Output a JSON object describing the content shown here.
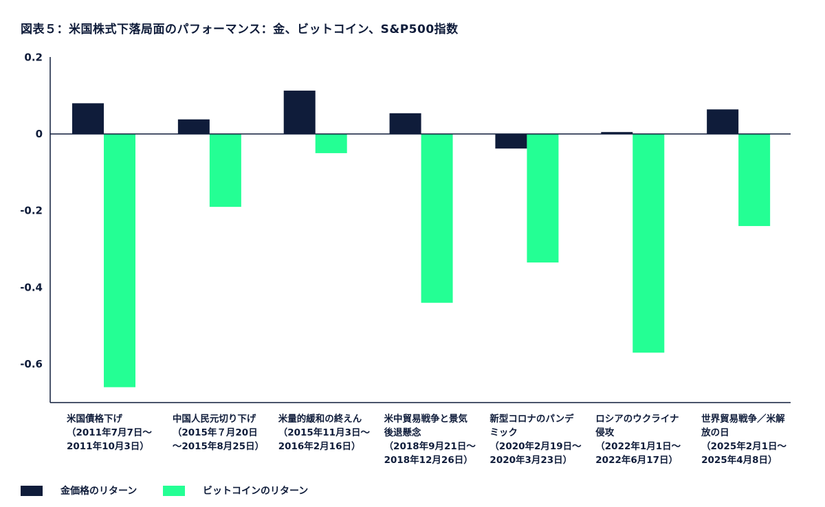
{
  "chart_data": {
    "type": "bar",
    "title": "図表５：米国株式下落局面のパフォーマンス：金、ビットコイン、S&P500指数",
    "xlabel": "",
    "ylabel": "",
    "ylim": [
      -0.7,
      0.2
    ],
    "yticks": [
      0.2,
      0,
      -0.2,
      -0.4,
      -0.6
    ],
    "ytick_labels": [
      "0.2",
      "0",
      "-0.2",
      "-0.4",
      "-0.6"
    ],
    "grid": false,
    "legend_position": "bottom-left",
    "categories": [
      [
        "米国債格下げ",
        "（2011年7月7日～",
        "2011年10月3日）"
      ],
      [
        "中国人民元切り下げ",
        "（2015年７月20日",
        "～2015年8月25日）"
      ],
      [
        "米量的緩和の終えん",
        "（2015年11月3日～",
        "2016年2月16日）"
      ],
      [
        "米中貿易戦争と景気",
        "後退懸念",
        "（2018年9月21日～",
        "2018年12月26日）"
      ],
      [
        "新型コロナのパンデ",
        "ミック",
        "（2020年2月19日～",
        "2020年3月23日）"
      ],
      [
        "ロシアのウクライナ",
        "侵攻",
        "（2022年1月1日～",
        "2022年6月17日）"
      ],
      [
        "世界貿易戦争／米解",
        "放の日",
        "（2025年2月1日～",
        "2025年4月8日）"
      ]
    ],
    "series": [
      {
        "name": "金価格のリターン",
        "color": "#0f1c3a",
        "values": [
          0.08,
          0.038,
          0.113,
          0.054,
          -0.038,
          0.005,
          0.064
        ]
      },
      {
        "name": "ビットコインのリターン",
        "color": "#24ff94",
        "values": [
          -0.66,
          -0.19,
          -0.05,
          -0.44,
          -0.335,
          -0.57,
          -0.24
        ]
      }
    ]
  }
}
